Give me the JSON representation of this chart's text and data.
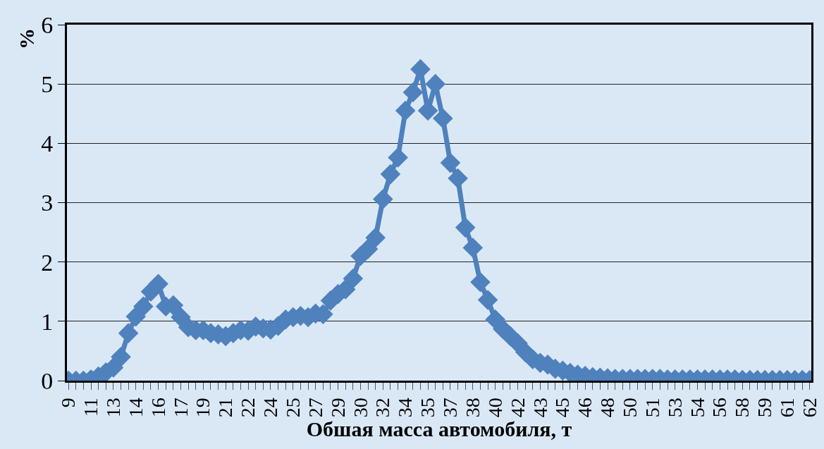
{
  "chart_data": {
    "type": "line",
    "xlabel": "Обшая масса автомобиля, т",
    "ylabel": "%",
    "categories": [
      "9",
      null,
      null,
      "11",
      null,
      null,
      "13",
      null,
      null,
      "14",
      null,
      null,
      "16",
      null,
      null,
      "17",
      null,
      null,
      "19",
      null,
      null,
      "21",
      null,
      null,
      "22",
      null,
      null,
      "24",
      null,
      null,
      "25",
      null,
      null,
      "27",
      null,
      null,
      "29",
      null,
      null,
      "30",
      null,
      null,
      "32",
      null,
      null,
      "34",
      null,
      null,
      "35",
      null,
      null,
      "37",
      null,
      null,
      "38",
      null,
      null,
      "40",
      null,
      null,
      "42",
      null,
      null,
      "43",
      null,
      null,
      "45",
      null,
      null,
      "46",
      null,
      null,
      "48",
      null,
      null,
      "50",
      null,
      null,
      "51",
      null,
      null,
      "53",
      null,
      null,
      "54",
      null,
      null,
      "56",
      null,
      null,
      "58",
      null,
      null,
      "59",
      null,
      null,
      "61",
      null,
      null,
      "62"
    ],
    "series": [
      {
        "color": "#4f81bd",
        "values": [
          0,
          0,
          0,
          0.02,
          0.07,
          0.14,
          0.22,
          0.4,
          0.8,
          1.08,
          1.25,
          1.5,
          1.63,
          1.25,
          1.27,
          1.07,
          0.9,
          0.85,
          0.85,
          0.8,
          0.78,
          0.75,
          0.8,
          0.85,
          0.84,
          0.91,
          0.88,
          0.86,
          0.92,
          1.03,
          1.07,
          1.09,
          1.07,
          1.13,
          1.12,
          1.35,
          1.46,
          1.54,
          1.72,
          2.1,
          2.22,
          2.41,
          3.06,
          3.48,
          3.76,
          4.55,
          4.86,
          5.25,
          4.55,
          5.0,
          4.42,
          3.67,
          3.41,
          2.58,
          2.24,
          1.66,
          1.36,
          1.03,
          0.87,
          0.75,
          0.63,
          0.48,
          0.36,
          0.3,
          0.27,
          0.2,
          0.17,
          0.13,
          0.1,
          0.08,
          0.06,
          0.05,
          0.04,
          0.03,
          0.03,
          0.03,
          0.03,
          0.03,
          0.03,
          0.03,
          0.02,
          0.02,
          0.02,
          0.02,
          0.02,
          0.02,
          0.02,
          0.02,
          0.02,
          0.02,
          0.01,
          0.01,
          0.01,
          0.01,
          0.01,
          0.01,
          0.01,
          0.01,
          0.01,
          0.01
        ]
      }
    ],
    "ylim": [
      0,
      6
    ],
    "yticks": [
      0,
      1,
      2,
      3,
      4,
      5,
      6
    ],
    "grid": "y",
    "marker": "diamond",
    "line_style": "solid"
  }
}
